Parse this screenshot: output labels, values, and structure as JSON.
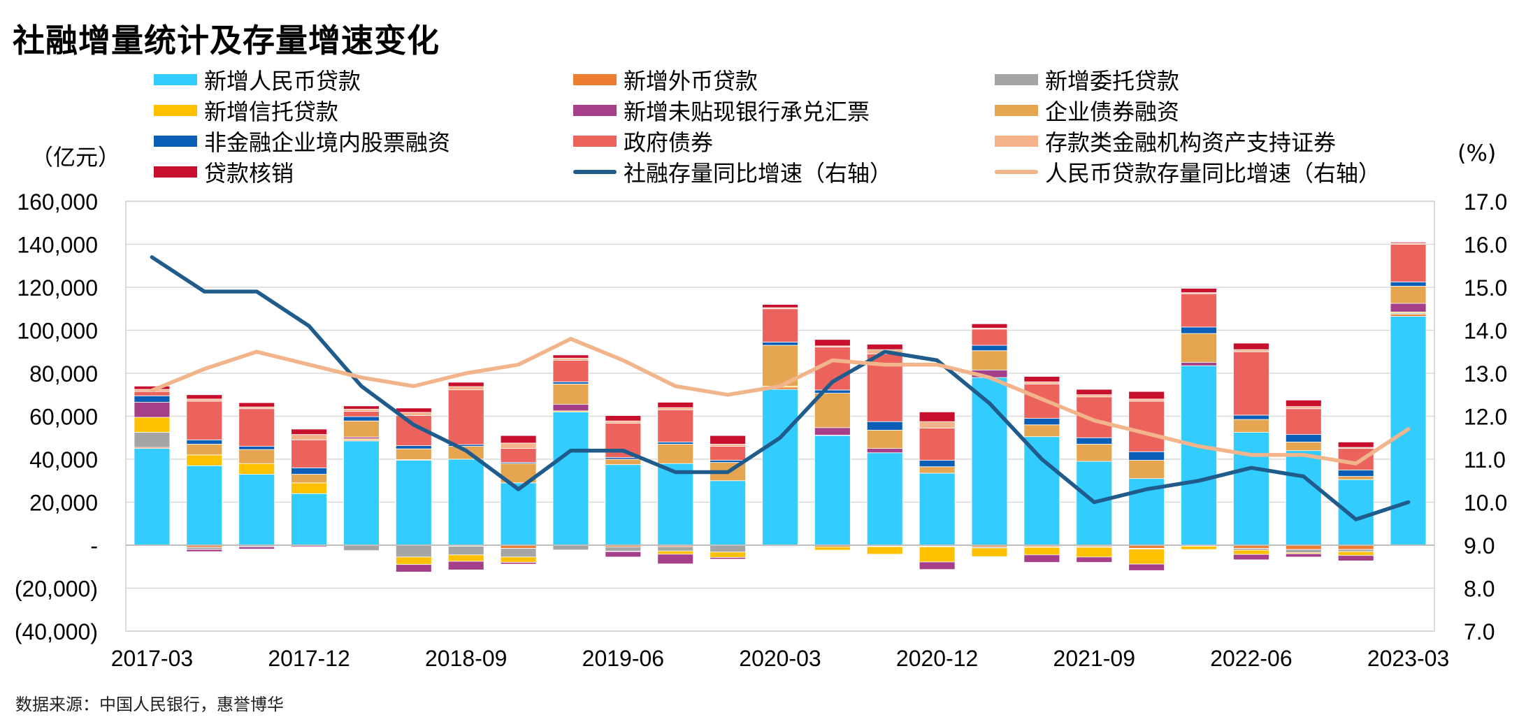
{
  "chart_data": {
    "type": "bar",
    "title": "社融增量统计及存量增速变化",
    "left_axis_unit": "（亿元）",
    "right_axis_unit": "(%)",
    "source": "数据来源：中国人民银行，惠誉博华",
    "categories": [
      "2017-03",
      "2017-06",
      "2017-09",
      "2017-12",
      "2018-03",
      "2018-06",
      "2018-09",
      "2018-12",
      "2019-03",
      "2019-06",
      "2019-09",
      "2019-12",
      "2020-03",
      "2020-06",
      "2020-09",
      "2020-12",
      "2021-03",
      "2021-06",
      "2021-09",
      "2021-12",
      "2022-03",
      "2022-06",
      "2022-09",
      "2022-12",
      "2023-03"
    ],
    "x_tick_labels": [
      "2017-03",
      "2017-12",
      "2018-09",
      "2019-06",
      "2020-03",
      "2020-12",
      "2021-09",
      "2022-06",
      "2023-03"
    ],
    "x_tick_every": 3,
    "y_left": {
      "min": -40000,
      "max": 160000,
      "step": 20000,
      "tick_labels": [
        "(40,000)",
        "(20,000)",
        "-",
        "20,000",
        "40,000",
        "60,000",
        "80,000",
        "100,000",
        "120,000",
        "140,000",
        "160,000"
      ]
    },
    "y_right": {
      "min": 7.0,
      "max": 17.0,
      "step": 1.0,
      "tick_labels": [
        "7.0",
        "8.0",
        "9.0",
        "10.0",
        "11.0",
        "12.0",
        "13.0",
        "14.0",
        "15.0",
        "16.0",
        "17.0"
      ]
    },
    "grid": "horizontal",
    "legend_position": "top",
    "stack_series": [
      {
        "name": "新增人民币贷款",
        "color": "#33CCFF",
        "values": [
          45000,
          37000,
          33000,
          24000,
          48500,
          39500,
          40000,
          29000,
          62000,
          37500,
          38000,
          30000,
          72500,
          51000,
          43000,
          33500,
          78000,
          50500,
          39000,
          31000,
          83500,
          52500,
          44000,
          30500,
          106500
        ]
      },
      {
        "name": "新增外币贷款",
        "color": "#ED7D31",
        "values": [
          500,
          -1000,
          -300,
          -100,
          500,
          300,
          -500,
          -1500,
          -200,
          -800,
          -700,
          -200,
          1000,
          -800,
          -500,
          -500,
          -800,
          -700,
          -600,
          -1500,
          -300,
          -1500,
          -2000,
          -2000,
          1000
        ]
      },
      {
        "name": "新增委托贷款",
        "color": "#A5A5A5",
        "values": [
          7000,
          -1000,
          -500,
          -200,
          -2500,
          -5500,
          -4000,
          -4000,
          -2000,
          -2000,
          -2000,
          -3000,
          -500,
          200,
          -200,
          -300,
          -500,
          -300,
          -400,
          -300,
          -200,
          -800,
          -1500,
          -1000,
          500
        ]
      },
      {
        "name": "新增信托贷款",
        "color": "#FFC000",
        "values": [
          7000,
          5000,
          5000,
          5000,
          500,
          -3500,
          -3000,
          -2500,
          500,
          -200,
          -1500,
          -2500,
          500,
          -1500,
          -3500,
          -7000,
          -4000,
          -3500,
          -4500,
          -7000,
          -1500,
          -2000,
          -500,
          -1800,
          500
        ]
      },
      {
        "name": "新增未贴现银行承兑汇票",
        "color": "#A53F8A",
        "values": [
          7000,
          -1000,
          -1000,
          -500,
          800,
          -3500,
          -4000,
          -800,
          3000,
          -2500,
          -4500,
          -800,
          -300,
          3500,
          2000,
          -3500,
          3500,
          -3500,
          -2500,
          -3000,
          1500,
          -2500,
          -1500,
          -2500,
          4000
        ]
      },
      {
        "name": "企业债券融资",
        "color": "#E6A550",
        "values": [
          0,
          5000,
          6500,
          4000,
          7500,
          5000,
          6000,
          9000,
          9500,
          2500,
          9000,
          8500,
          19000,
          16000,
          8500,
          3000,
          9000,
          5500,
          8000,
          8500,
          13500,
          6000,
          4000,
          1500,
          8000
        ]
      },
      {
        "name": "非金融企业境内股票融资",
        "color": "#0A5EB5",
        "values": [
          3000,
          2000,
          1500,
          3000,
          2000,
          1500,
          800,
          500,
          1000,
          800,
          1000,
          1000,
          1500,
          1500,
          4000,
          3000,
          2500,
          3000,
          3000,
          4000,
          3000,
          2000,
          3500,
          3000,
          2000
        ]
      },
      {
        "name": "政府债券",
        "color": "#EC625C",
        "values": [
          2000,
          18000,
          17500,
          13000,
          2500,
          14000,
          25500,
          6500,
          10000,
          16000,
          15000,
          6500,
          15500,
          20000,
          31500,
          15000,
          7500,
          16000,
          19000,
          23500,
          15500,
          29500,
          12000,
          10000,
          17500
        ]
      },
      {
        "name": "存款类金融机构资产支持证券",
        "color": "#F5B38A",
        "values": [
          1000,
          1000,
          800,
          2500,
          1000,
          1500,
          1500,
          2500,
          1000,
          1000,
          1000,
          1000,
          500,
          500,
          2000,
          3000,
          500,
          1000,
          1000,
          1000,
          500,
          1000,
          1000,
          500,
          500
        ]
      },
      {
        "name": "贷款核销",
        "color": "#C8102E",
        "values": [
          1500,
          2000,
          2000,
          2500,
          1500,
          2000,
          2000,
          3500,
          1500,
          2500,
          2500,
          4000,
          1500,
          3000,
          2500,
          4500,
          2000,
          2500,
          2500,
          3500,
          2000,
          3000,
          3000,
          2500,
          500
        ]
      }
    ],
    "line_series": [
      {
        "name": "社融存量同比增速（右轴）",
        "color": "#1F5C8B",
        "axis": "right",
        "values": [
          15.7,
          14.9,
          14.9,
          14.1,
          12.7,
          11.8,
          11.2,
          10.3,
          11.2,
          11.2,
          10.7,
          10.7,
          11.5,
          12.8,
          13.5,
          13.3,
          12.3,
          11.0,
          10.0,
          10.3,
          10.5,
          10.8,
          10.6,
          9.6,
          10.0
        ]
      },
      {
        "name": "人民币贷款存量同比增速（右轴）",
        "color": "#F2B48A",
        "axis": "right",
        "values": [
          12.6,
          13.1,
          13.5,
          13.2,
          12.9,
          12.7,
          13.0,
          13.2,
          13.8,
          13.3,
          12.7,
          12.5,
          12.7,
          13.3,
          13.2,
          13.2,
          12.9,
          12.4,
          11.9,
          11.6,
          11.3,
          11.1,
          11.1,
          10.9,
          11.7
        ]
      }
    ],
    "legend_order": [
      [
        "新增人民币贷款",
        "新增外币贷款",
        "新增委托贷款"
      ],
      [
        "新增信托贷款",
        "新增未贴现银行承兑汇票",
        "企业债券融资"
      ],
      [
        "非金融企业境内股票融资",
        "政府债券",
        "存款类金融机构资产支持证券"
      ],
      [
        "贷款核销",
        "社融存量同比增速（右轴）",
        "人民币贷款存量同比增速（右轴）"
      ]
    ]
  }
}
